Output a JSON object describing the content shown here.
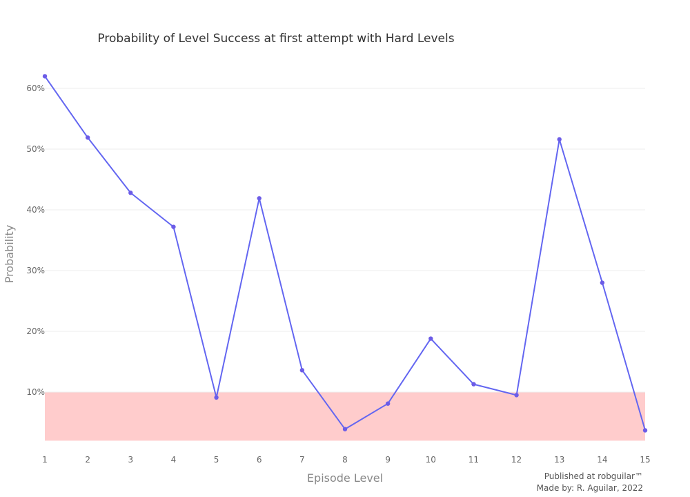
{
  "chart_data": {
    "type": "line",
    "title": "Probability of Level Success at first attempt with Hard Levels",
    "xlabel": "Episode Level",
    "ylabel": "Probability",
    "x": [
      1,
      2,
      3,
      4,
      5,
      6,
      7,
      8,
      9,
      10,
      11,
      12,
      13,
      14,
      15
    ],
    "x_tick_labels": [
      "1",
      "2",
      "3",
      "4",
      "5",
      "6",
      "7",
      "8",
      "9",
      "10",
      "11",
      "12",
      "13",
      "14",
      "15"
    ],
    "series": [
      {
        "values": [
          0.62,
          0.519,
          0.428,
          0.372,
          0.091,
          0.419,
          0.136,
          0.039,
          0.081,
          0.188,
          0.113,
          0.095,
          0.516,
          0.28,
          0.037
        ]
      }
    ],
    "y_ticks": [
      0.1,
      0.2,
      0.3,
      0.4,
      0.5,
      0.6
    ],
    "y_tick_labels": [
      "10%",
      "20%",
      "30%",
      "40%",
      "50%",
      "60%"
    ],
    "ylim": [
      0,
      0.62
    ],
    "xlim": [
      1,
      15
    ],
    "grid": true,
    "highlight_band": {
      "from": 0.02,
      "to": 0.1,
      "color": "#ffcccc"
    },
    "colors": {
      "line": "#6366f1",
      "marker": "#6c5ce7",
      "grid": "#eeeeee"
    }
  },
  "footer": {
    "published": "Published at robguilar™",
    "made_by": "Made by:  R. Aguilar, 2022"
  }
}
